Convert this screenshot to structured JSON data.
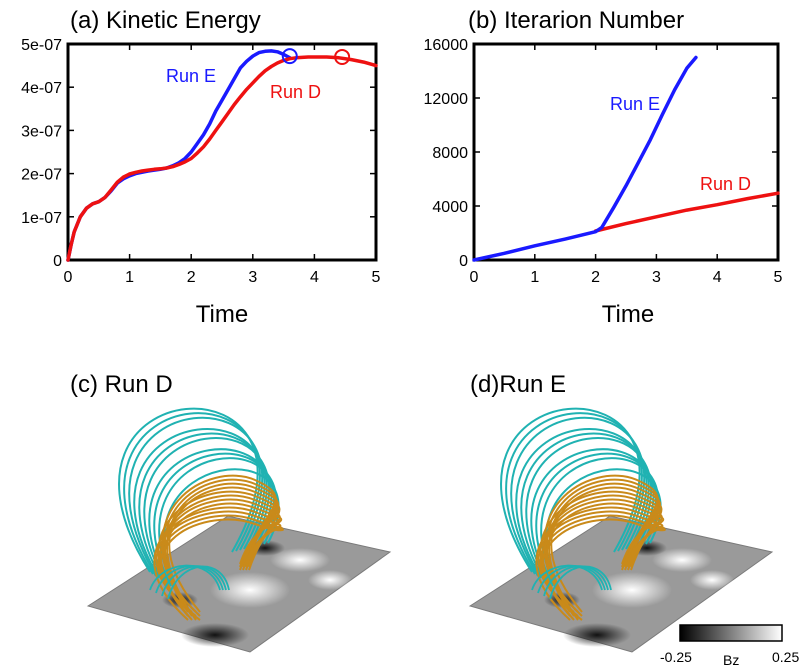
{
  "chart_data": [
    {
      "type": "line",
      "title": "(a) Kinetic Energy",
      "xlabel": "Time",
      "ylabel": "",
      "xlim": [
        0,
        5
      ],
      "ylim": [
        0,
        5e-07
      ],
      "xticks": [
        "0",
        "1",
        "2",
        "3",
        "4",
        "5"
      ],
      "yticks": [
        "0",
        "1e-07",
        "2e-07",
        "3e-07",
        "4e-07",
        "5e-07"
      ],
      "grid": false,
      "series": [
        {
          "name": "Run E",
          "color": "#1a1aff",
          "x": [
            0,
            0.05,
            0.1,
            0.2,
            0.3,
            0.4,
            0.5,
            0.6,
            0.7,
            0.8,
            0.9,
            1.0,
            1.1,
            1.2,
            1.3,
            1.4,
            1.5,
            1.6,
            1.7,
            1.8,
            1.9,
            2.0,
            2.1,
            2.2,
            2.3,
            2.4,
            2.5,
            2.6,
            2.7,
            2.8,
            2.9,
            3.0,
            3.1,
            3.2,
            3.3,
            3.4,
            3.5,
            3.6
          ],
          "y": [
            0,
            3.5e-08,
            6.5e-08,
            1e-07,
            1.2e-07,
            1.3e-07,
            1.35e-07,
            1.45e-07,
            1.6e-07,
            1.78e-07,
            1.88e-07,
            1.95e-07,
            2e-07,
            2.03e-07,
            2.06e-07,
            2.08e-07,
            2.1e-07,
            2.13e-07,
            2.18e-07,
            2.25e-07,
            2.35e-07,
            2.5e-07,
            2.7e-07,
            2.9e-07,
            3.15e-07,
            3.45e-07,
            3.7e-07,
            3.95e-07,
            4.2e-07,
            4.45e-07,
            4.6e-07,
            4.72e-07,
            4.8e-07,
            4.83e-07,
            4.84e-07,
            4.82e-07,
            4.76e-07,
            4.68e-07
          ]
        },
        {
          "name": "Run D",
          "color": "#ee1111",
          "x": [
            0,
            0.05,
            0.1,
            0.2,
            0.3,
            0.4,
            0.5,
            0.6,
            0.7,
            0.8,
            0.9,
            1.0,
            1.1,
            1.2,
            1.3,
            1.4,
            1.5,
            1.6,
            1.7,
            1.8,
            1.9,
            2.0,
            2.1,
            2.2,
            2.3,
            2.4,
            2.5,
            2.6,
            2.7,
            2.8,
            2.9,
            3.0,
            3.1,
            3.2,
            3.3,
            3.4,
            3.5,
            3.6,
            3.7,
            3.8,
            3.9,
            4.0,
            4.2,
            4.4,
            4.6,
            4.8,
            5.0
          ],
          "y": [
            0,
            3.5e-08,
            6.5e-08,
            1e-07,
            1.2e-07,
            1.3e-07,
            1.35e-07,
            1.45e-07,
            1.62e-07,
            1.8e-07,
            1.92e-07,
            1.99e-07,
            2.03e-07,
            2.06e-07,
            2.08e-07,
            2.1e-07,
            2.11e-07,
            2.13e-07,
            2.16e-07,
            2.21e-07,
            2.27e-07,
            2.35e-07,
            2.48e-07,
            2.62e-07,
            2.8e-07,
            3e-07,
            3.2e-07,
            3.4e-07,
            3.6e-07,
            3.78e-07,
            3.95e-07,
            4.1e-07,
            4.25e-07,
            4.38e-07,
            4.48e-07,
            4.56e-07,
            4.62e-07,
            4.66e-07,
            4.68e-07,
            4.69e-07,
            4.7e-07,
            4.7e-07,
            4.7e-07,
            4.68e-07,
            4.64e-07,
            4.58e-07,
            4.5e-07
          ]
        }
      ],
      "markers": [
        {
          "series": "Run E",
          "x": 3.6,
          "y": 4.72e-07,
          "color": "#1a1aff"
        },
        {
          "series": "Run D",
          "x": 4.45,
          "y": 4.7e-07,
          "color": "#ee1111"
        }
      ]
    },
    {
      "type": "line",
      "title": "(b) Iterarion Number",
      "xlabel": "Time",
      "ylabel": "",
      "xlim": [
        0,
        5
      ],
      "ylim": [
        0,
        16000
      ],
      "xticks": [
        "0",
        "1",
        "2",
        "3",
        "4",
        "5"
      ],
      "yticks": [
        "0",
        "4000",
        "8000",
        "12000",
        "16000"
      ],
      "grid": false,
      "series": [
        {
          "name": "Run D",
          "color": "#ee1111",
          "x": [
            2.0,
            2.5,
            3.0,
            3.5,
            4.0,
            4.5,
            5.0
          ],
          "y": [
            2150,
            2700,
            3200,
            3700,
            4100,
            4550,
            4950
          ]
        },
        {
          "name": "Run E",
          "color": "#1a1aff",
          "x": [
            0,
            0.5,
            1.0,
            1.5,
            2.0,
            2.1,
            2.3,
            2.5,
            2.7,
            2.9,
            3.1,
            3.3,
            3.5,
            3.65
          ],
          "y": [
            0,
            500,
            1050,
            1550,
            2100,
            2400,
            3900,
            5500,
            7200,
            8900,
            10800,
            12600,
            14200,
            15000
          ]
        }
      ]
    }
  ],
  "panels": {
    "c_title": "(c) Run D",
    "d_title": "(d)Run E"
  },
  "colorbar": {
    "min_label": "-0.25",
    "name_label": "Bz",
    "max_label": "0.25"
  },
  "colors": {
    "open_field_lines": "#20b2b2",
    "twisted_field_lines": "#c98a1a",
    "magnetogram_base": "#9a9a9a"
  }
}
